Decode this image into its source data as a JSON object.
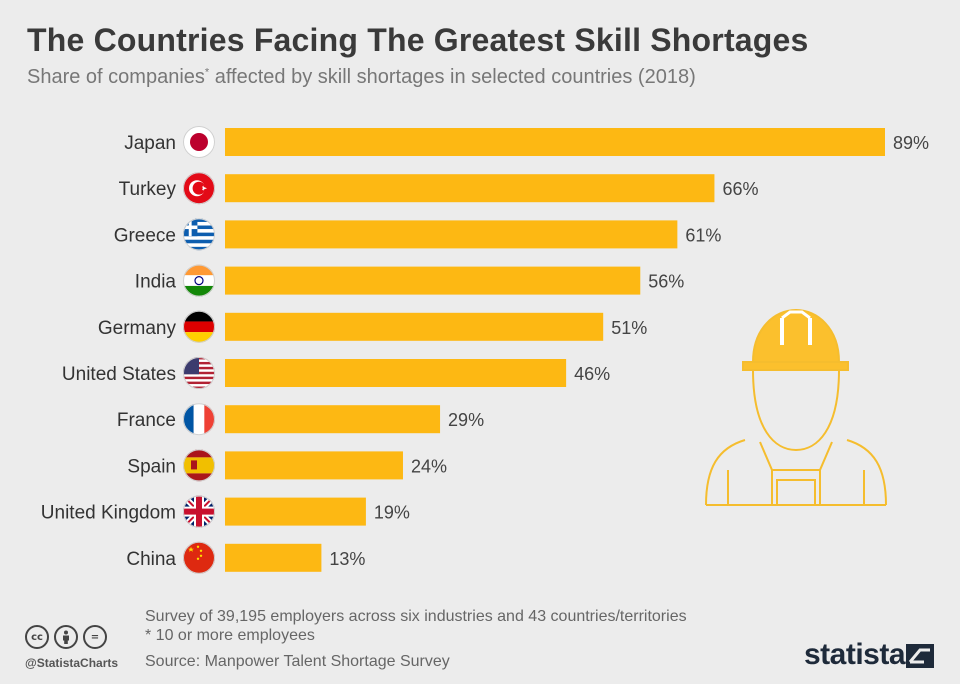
{
  "title": "The Countries Facing The Greatest Skill Shortages",
  "subtitle": "Share of companies",
  "subtitle_mark": "*",
  "subtitle_rest": " affected by skill shortages in selected countries (2018)",
  "chart_data": {
    "type": "bar",
    "orientation": "horizontal",
    "categories": [
      "Japan",
      "Turkey",
      "Greece",
      "India",
      "Germany",
      "United States",
      "France",
      "Spain",
      "United Kingdom",
      "China"
    ],
    "values": [
      89,
      66,
      61,
      56,
      51,
      46,
      29,
      24,
      19,
      13
    ],
    "value_labels": [
      "89%",
      "66%",
      "61%",
      "56%",
      "51%",
      "46%",
      "29%",
      "24%",
      "19%",
      "13%"
    ],
    "unit": "%",
    "bar_color": "#fdb813",
    "xlim": [
      0,
      89
    ],
    "grid": false,
    "flags": [
      "japan-flag",
      "turkey-flag",
      "greece-flag",
      "india-flag",
      "germany-flag",
      "usa-flag",
      "france-flag",
      "spain-flag",
      "uk-flag",
      "china-flag"
    ]
  },
  "illustration": "construction-worker-icon",
  "footer": {
    "note1": "Survey of 39,195 employers across six industries and 43 countries/territories",
    "note2": "* 10 or more employees",
    "source": "Source: Manpower Talent Shortage Survey",
    "handle": "@StatistaCharts",
    "brand": "statista",
    "cc_icons": [
      "cc",
      "by",
      "="
    ]
  }
}
